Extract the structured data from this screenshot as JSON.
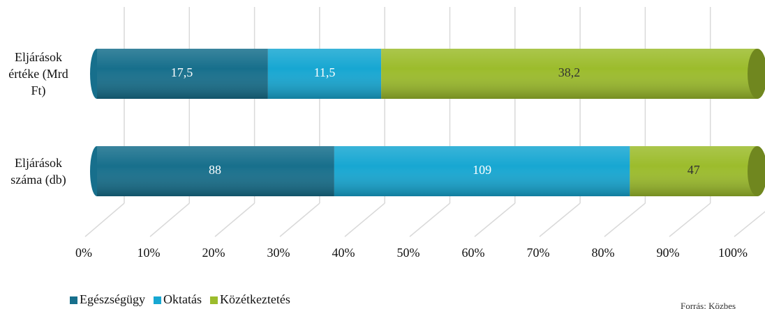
{
  "chart_data": {
    "type": "stacked_bar_100",
    "categories": [
      "Eljárások értéke (Mrd Ft)",
      "Eljárások száma (db)"
    ],
    "series": [
      {
        "name": "Egészségügy",
        "color": "#176f8c",
        "values": [
          17.5,
          88
        ],
        "value_labels": [
          "17,5",
          "88"
        ]
      },
      {
        "name": "Oktatás",
        "color": "#17a7d2",
        "values": [
          11.5,
          109
        ],
        "value_labels": [
          "11,5",
          "109"
        ]
      },
      {
        "name": "Közétkeztetés",
        "color": "#9cbc2c",
        "values": [
          38.2,
          47
        ],
        "value_labels": [
          "38,2",
          "47"
        ]
      }
    ],
    "xlim": [
      0,
      100
    ],
    "xticks": [
      {
        "value": 0,
        "label": "0%"
      },
      {
        "value": 10,
        "label": "10%"
      },
      {
        "value": 20,
        "label": "20%"
      },
      {
        "value": 30,
        "label": "30%"
      },
      {
        "value": 40,
        "label": "40%"
      },
      {
        "value": 50,
        "label": "50%"
      },
      {
        "value": 60,
        "label": "60%"
      },
      {
        "value": 70,
        "label": "70%"
      },
      {
        "value": 80,
        "label": "80%"
      },
      {
        "value": 90,
        "label": "90%"
      },
      {
        "value": 100,
        "label": "100%"
      }
    ],
    "grid": true,
    "source": "Forrás: Közbes"
  }
}
